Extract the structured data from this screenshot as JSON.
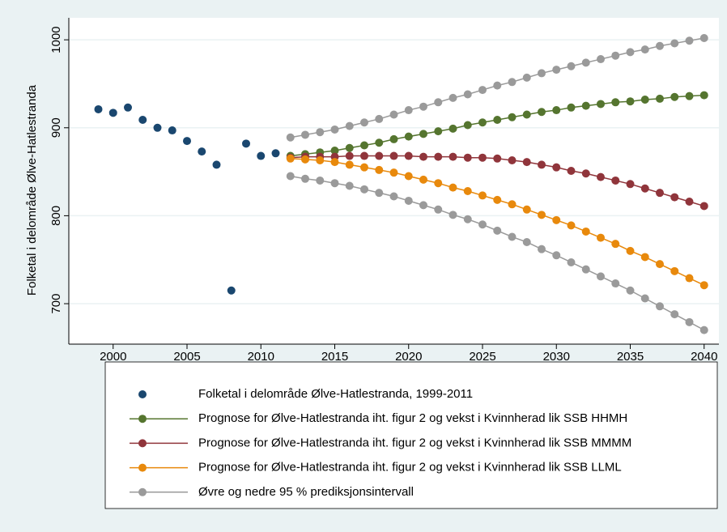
{
  "chart_data": {
    "type": "line",
    "y_label": "Folketal i delområde Ølve-Hatlestranda",
    "xlim": [
      1997,
      2041
    ],
    "xticks": [
      2000,
      2005,
      2010,
      2015,
      2020,
      2025,
      2030,
      2035,
      2040
    ],
    "ylim": [
      654,
      1025
    ],
    "yticks": [
      700,
      800,
      900,
      1000
    ],
    "grid": true,
    "series": [
      {
        "name": "Folketal i delområde Ølve-Hatlestranda, 1999-2011",
        "color": "#1a476f",
        "mode": "markers",
        "x": [
          1999,
          2000,
          2001,
          2002,
          2003,
          2004,
          2005,
          2006,
          2007,
          2008,
          2009,
          2010,
          2011
        ],
        "values": [
          921,
          917,
          923,
          909,
          900,
          897,
          885,
          873,
          858,
          715,
          882,
          868,
          871
        ]
      },
      {
        "name": "Prognose for Ølve-Hatlestranda iht. figur 2 og vekst i Kvinnherad lik SSB HHMH",
        "color": "#55752f",
        "mode": "lines+markers",
        "x": [
          2012,
          2013,
          2014,
          2015,
          2016,
          2017,
          2018,
          2019,
          2020,
          2021,
          2022,
          2023,
          2024,
          2025,
          2026,
          2027,
          2028,
          2029,
          2030,
          2031,
          2032,
          2033,
          2034,
          2035,
          2036,
          2037,
          2038,
          2039,
          2040
        ],
        "values": [
          868,
          870,
          872,
          874,
          877,
          880,
          883,
          887,
          890,
          893,
          896,
          899,
          903,
          906,
          909,
          912,
          915,
          918,
          920,
          923,
          925,
          927,
          929,
          930,
          932,
          933,
          935,
          936,
          937
        ]
      },
      {
        "name": "Prognose for Ølve-Hatlestranda iht. figur 2 og vekst i Kvinnherad lik SSB MMMM",
        "color": "#90353b",
        "mode": "lines+markers",
        "x": [
          2012,
          2013,
          2014,
          2015,
          2016,
          2017,
          2018,
          2019,
          2020,
          2021,
          2022,
          2023,
          2024,
          2025,
          2026,
          2027,
          2028,
          2029,
          2030,
          2031,
          2032,
          2033,
          2034,
          2035,
          2036,
          2037,
          2038,
          2039,
          2040
        ],
        "values": [
          866,
          867,
          867,
          867,
          868,
          868,
          868,
          868,
          868,
          867,
          867,
          867,
          866,
          866,
          865,
          863,
          861,
          858,
          855,
          851,
          848,
          844,
          840,
          836,
          831,
          826,
          821,
          816,
          811
        ]
      },
      {
        "name": "Prognose for Ølve-Hatlestranda iht. figur 2 og vekst i Kvinnherad lik SSB LLML",
        "color": "#e8890c",
        "mode": "lines+markers",
        "x": [
          2012,
          2013,
          2014,
          2015,
          2016,
          2017,
          2018,
          2019,
          2020,
          2021,
          2022,
          2023,
          2024,
          2025,
          2026,
          2027,
          2028,
          2029,
          2030,
          2031,
          2032,
          2033,
          2034,
          2035,
          2036,
          2037,
          2038,
          2039,
          2040
        ],
        "values": [
          865,
          864,
          863,
          861,
          858,
          855,
          852,
          849,
          845,
          841,
          837,
          832,
          828,
          823,
          818,
          813,
          807,
          801,
          795,
          789,
          782,
          775,
          768,
          760,
          753,
          745,
          737,
          729,
          721
        ]
      },
      {
        "name": "Øvre og nedre 95 % prediksjonsintervall",
        "color": "#9a9a9a",
        "mode": "lines+markers",
        "x": [
          2012,
          2013,
          2014,
          2015,
          2016,
          2017,
          2018,
          2019,
          2020,
          2021,
          2022,
          2023,
          2024,
          2025,
          2026,
          2027,
          2028,
          2029,
          2030,
          2031,
          2032,
          2033,
          2034,
          2035,
          2036,
          2037,
          2038,
          2039,
          2040
        ],
        "values": [
          889,
          892,
          895,
          898,
          902,
          906,
          910,
          915,
          920,
          924,
          929,
          934,
          938,
          943,
          948,
          952,
          957,
          962,
          966,
          970,
          974,
          978,
          982,
          986,
          989,
          993,
          996,
          999,
          1002
        ]
      },
      {
        "color": "#9a9a9a",
        "mode": "lines+markers",
        "x": [
          2012,
          2013,
          2014,
          2015,
          2016,
          2017,
          2018,
          2019,
          2020,
          2021,
          2022,
          2023,
          2024,
          2025,
          2026,
          2027,
          2028,
          2029,
          2030,
          2031,
          2032,
          2033,
          2034,
          2035,
          2036,
          2037,
          2038,
          2039,
          2040
        ],
        "values": [
          845,
          842,
          840,
          837,
          834,
          830,
          826,
          822,
          817,
          812,
          807,
          801,
          796,
          790,
          783,
          776,
          770,
          762,
          755,
          747,
          739,
          731,
          723,
          715,
          706,
          697,
          688,
          679,
          670
        ]
      }
    ]
  }
}
